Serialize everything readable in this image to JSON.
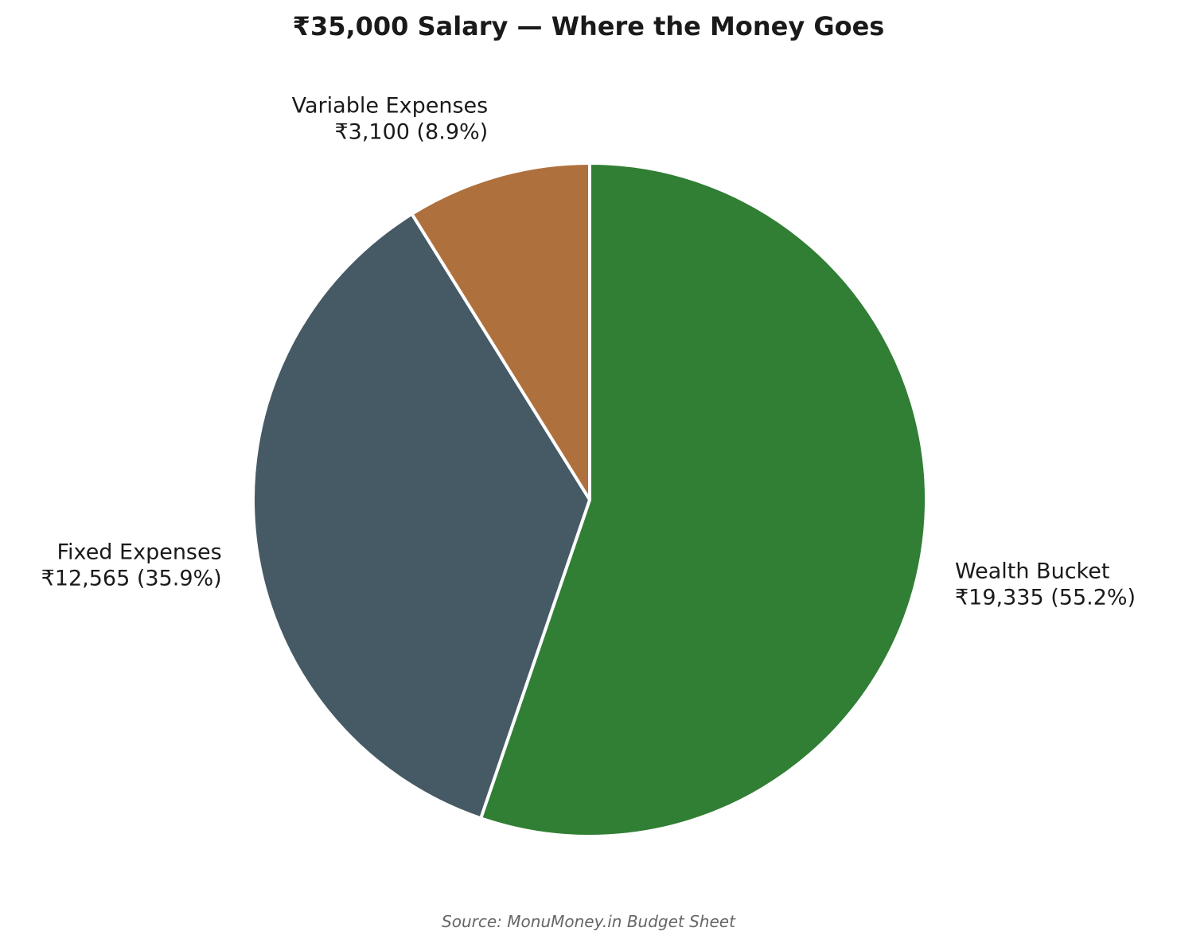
{
  "chart_data": {
    "type": "pie",
    "title": "₹35,000 Salary — Where the Money Goes",
    "source": "Source: MonuMoney.in Budget Sheet",
    "total": 35000,
    "currency_symbol": "₹",
    "start_angle_deg": 90,
    "direction": "clockwise",
    "slices": [
      {
        "name": "Wealth Bucket",
        "value": 19335,
        "value_label": "₹19,335 (55.2%)",
        "percent": 55.2,
        "color": "#317e35"
      },
      {
        "name": "Fixed Expenses",
        "value": 12565,
        "value_label": "₹12,565 (35.9%)",
        "percent": 35.9,
        "color": "#465a65"
      },
      {
        "name": "Variable Expenses",
        "value": 3100,
        "value_label": "₹3,100 (8.9%)",
        "percent": 8.9,
        "color": "#ae713d"
      }
    ],
    "slice_edge_color": "#ffffff",
    "legend": "none"
  }
}
